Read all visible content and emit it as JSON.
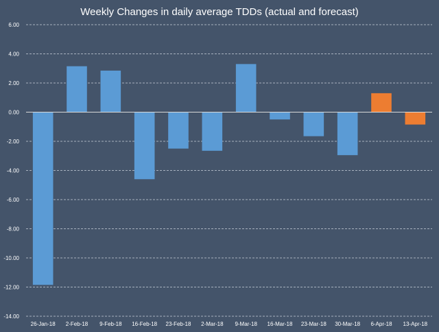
{
  "chart_data": {
    "type": "bar",
    "title": "Weekly Changes in daily average TDDs (actual and forecast)",
    "xlabel": "",
    "ylabel": "",
    "categories": [
      "26-Jan-18",
      "2-Feb-18",
      "9-Feb-18",
      "16-Feb-18",
      "23-Feb-18",
      "2-Mar-18",
      "9-Mar-18",
      "16-Mar-18",
      "23-Mar-18",
      "30-Mar-18",
      "6-Apr-18",
      "13-Apr-18"
    ],
    "values": [
      -11.85,
      3.15,
      2.85,
      -4.6,
      -2.5,
      -2.65,
      3.3,
      -0.5,
      -1.65,
      -2.95,
      1.3,
      -0.85
    ],
    "forecast_flags": [
      false,
      false,
      false,
      false,
      false,
      false,
      false,
      false,
      false,
      false,
      true,
      true
    ],
    "ylim": [
      -14,
      6
    ],
    "yticks": [
      6,
      4,
      2,
      0,
      -2,
      -4,
      -6,
      -8,
      -10,
      -12,
      -14
    ],
    "ytick_labels": [
      "6.00",
      "4.00",
      "2.00",
      "0.00",
      "-2.00",
      "-4.00",
      "-6.00",
      "-8.00",
      "-10.00",
      "-12.00",
      "-14.00"
    ],
    "grid": true,
    "legend": "none",
    "colors": {
      "background": "#44546a",
      "actual": "#5b9bd5",
      "forecast": "#ed7d31",
      "text": "#ffffff",
      "grid": "#c9d1dc"
    }
  }
}
